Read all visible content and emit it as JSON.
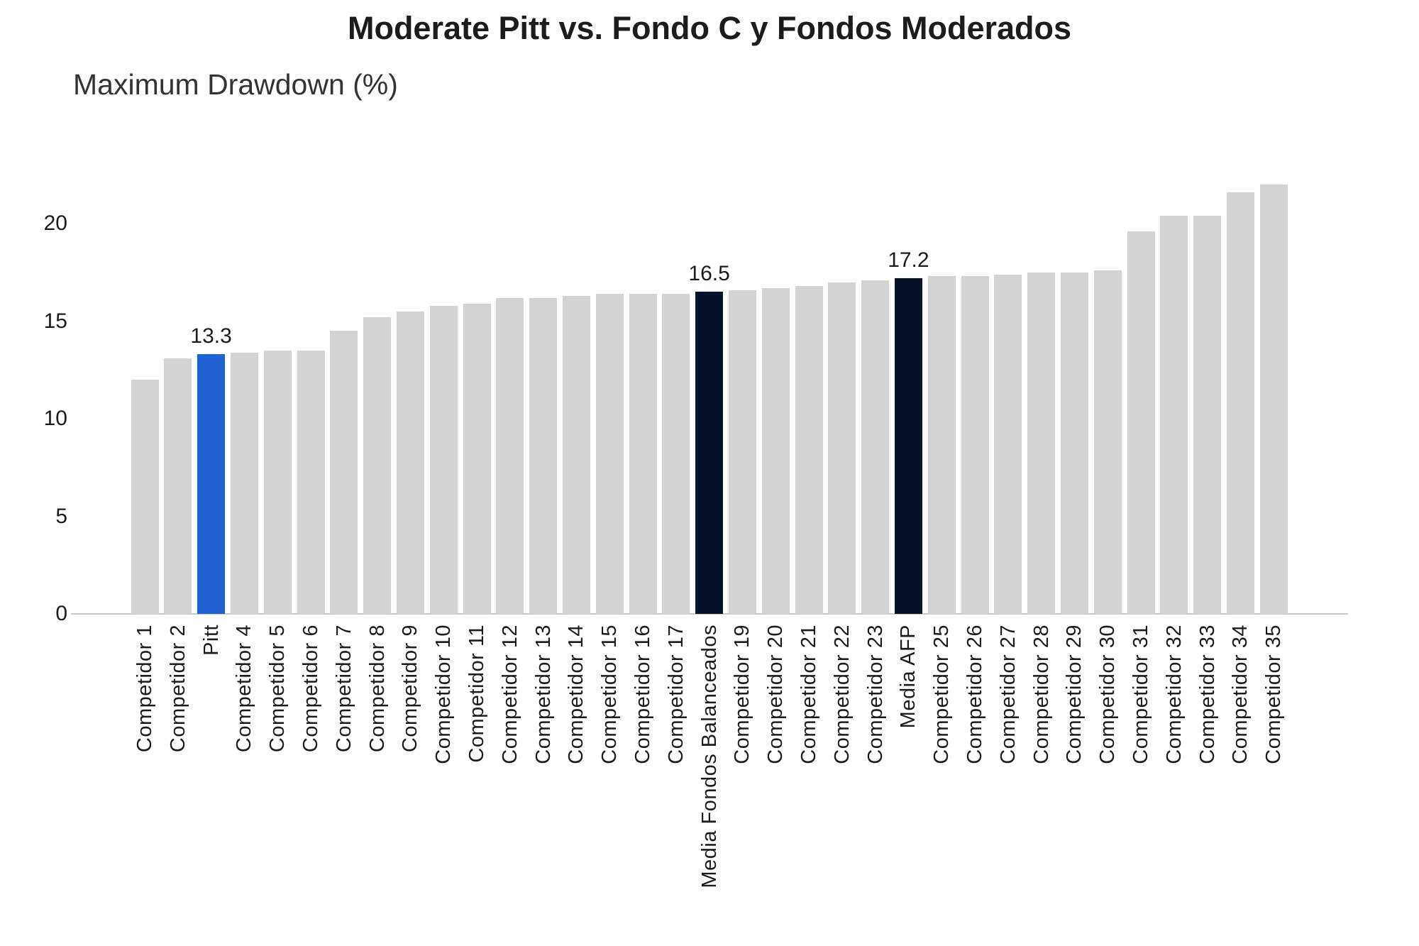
{
  "header": {
    "title": "Moderate Pitt vs. Fondo C y Fondos Moderados",
    "subtitle": "Maximum Drawdown (%)"
  },
  "chart_data": {
    "type": "bar",
    "title": "Moderate Pitt vs. Fondo C y Fondos Moderados",
    "ylabel": "Maximum Drawdown (%)",
    "xlabel": "",
    "grid": false,
    "legend_position": "none",
    "yticks": [
      0,
      5,
      10,
      15,
      20
    ],
    "ylim": [
      0,
      22.5
    ],
    "categories": [
      "Competidor 1",
      "Competidor 2",
      "Pitt",
      "Competidor 4",
      "Competidor 5",
      "Competidor 6",
      "Competidor 7",
      "Competidor 8",
      "Competidor 9",
      "Competidor 10",
      "Competidor 11",
      "Competidor 12",
      "Competidor 13",
      "Competidor 14",
      "Competidor 15",
      "Competidor 16",
      "Competidor 17",
      "Media Fondos Balanceados",
      "Competidor 19",
      "Competidor 20",
      "Competidor 21",
      "Competidor 22",
      "Competidor 23",
      "Media AFP",
      "Competidor 25",
      "Competidor 26",
      "Competidor 27",
      "Competidor 28",
      "Competidor 29",
      "Competidor 30",
      "Competidor 31",
      "Competidor 32",
      "Competidor 33",
      "Competidor 34",
      "Competidor 35"
    ],
    "values": [
      12.0,
      13.1,
      13.3,
      13.4,
      13.5,
      13.5,
      14.5,
      15.2,
      15.5,
      15.8,
      15.9,
      16.2,
      16.2,
      16.3,
      16.4,
      16.4,
      16.4,
      16.5,
      16.6,
      16.7,
      16.8,
      17.0,
      17.1,
      17.2,
      17.3,
      17.3,
      17.4,
      17.5,
      17.5,
      17.6,
      19.6,
      20.4,
      20.4,
      21.6,
      22.0
    ],
    "bar_value_labels": {
      "Pitt": "13.3",
      "Media Fondos Balanceados": "16.5",
      "Media AFP": "17.2"
    },
    "highlight": {
      "primary": "Pitt",
      "secondary": [
        "Media Fondos Balanceados",
        "Media AFP"
      ]
    },
    "colors": {
      "default_bar": "#d3d3d3",
      "primary_bar": "#2160d1",
      "secondary_bar": "#061229",
      "axis_line": "#c9c9c9",
      "text": "#1c1c1c"
    }
  }
}
